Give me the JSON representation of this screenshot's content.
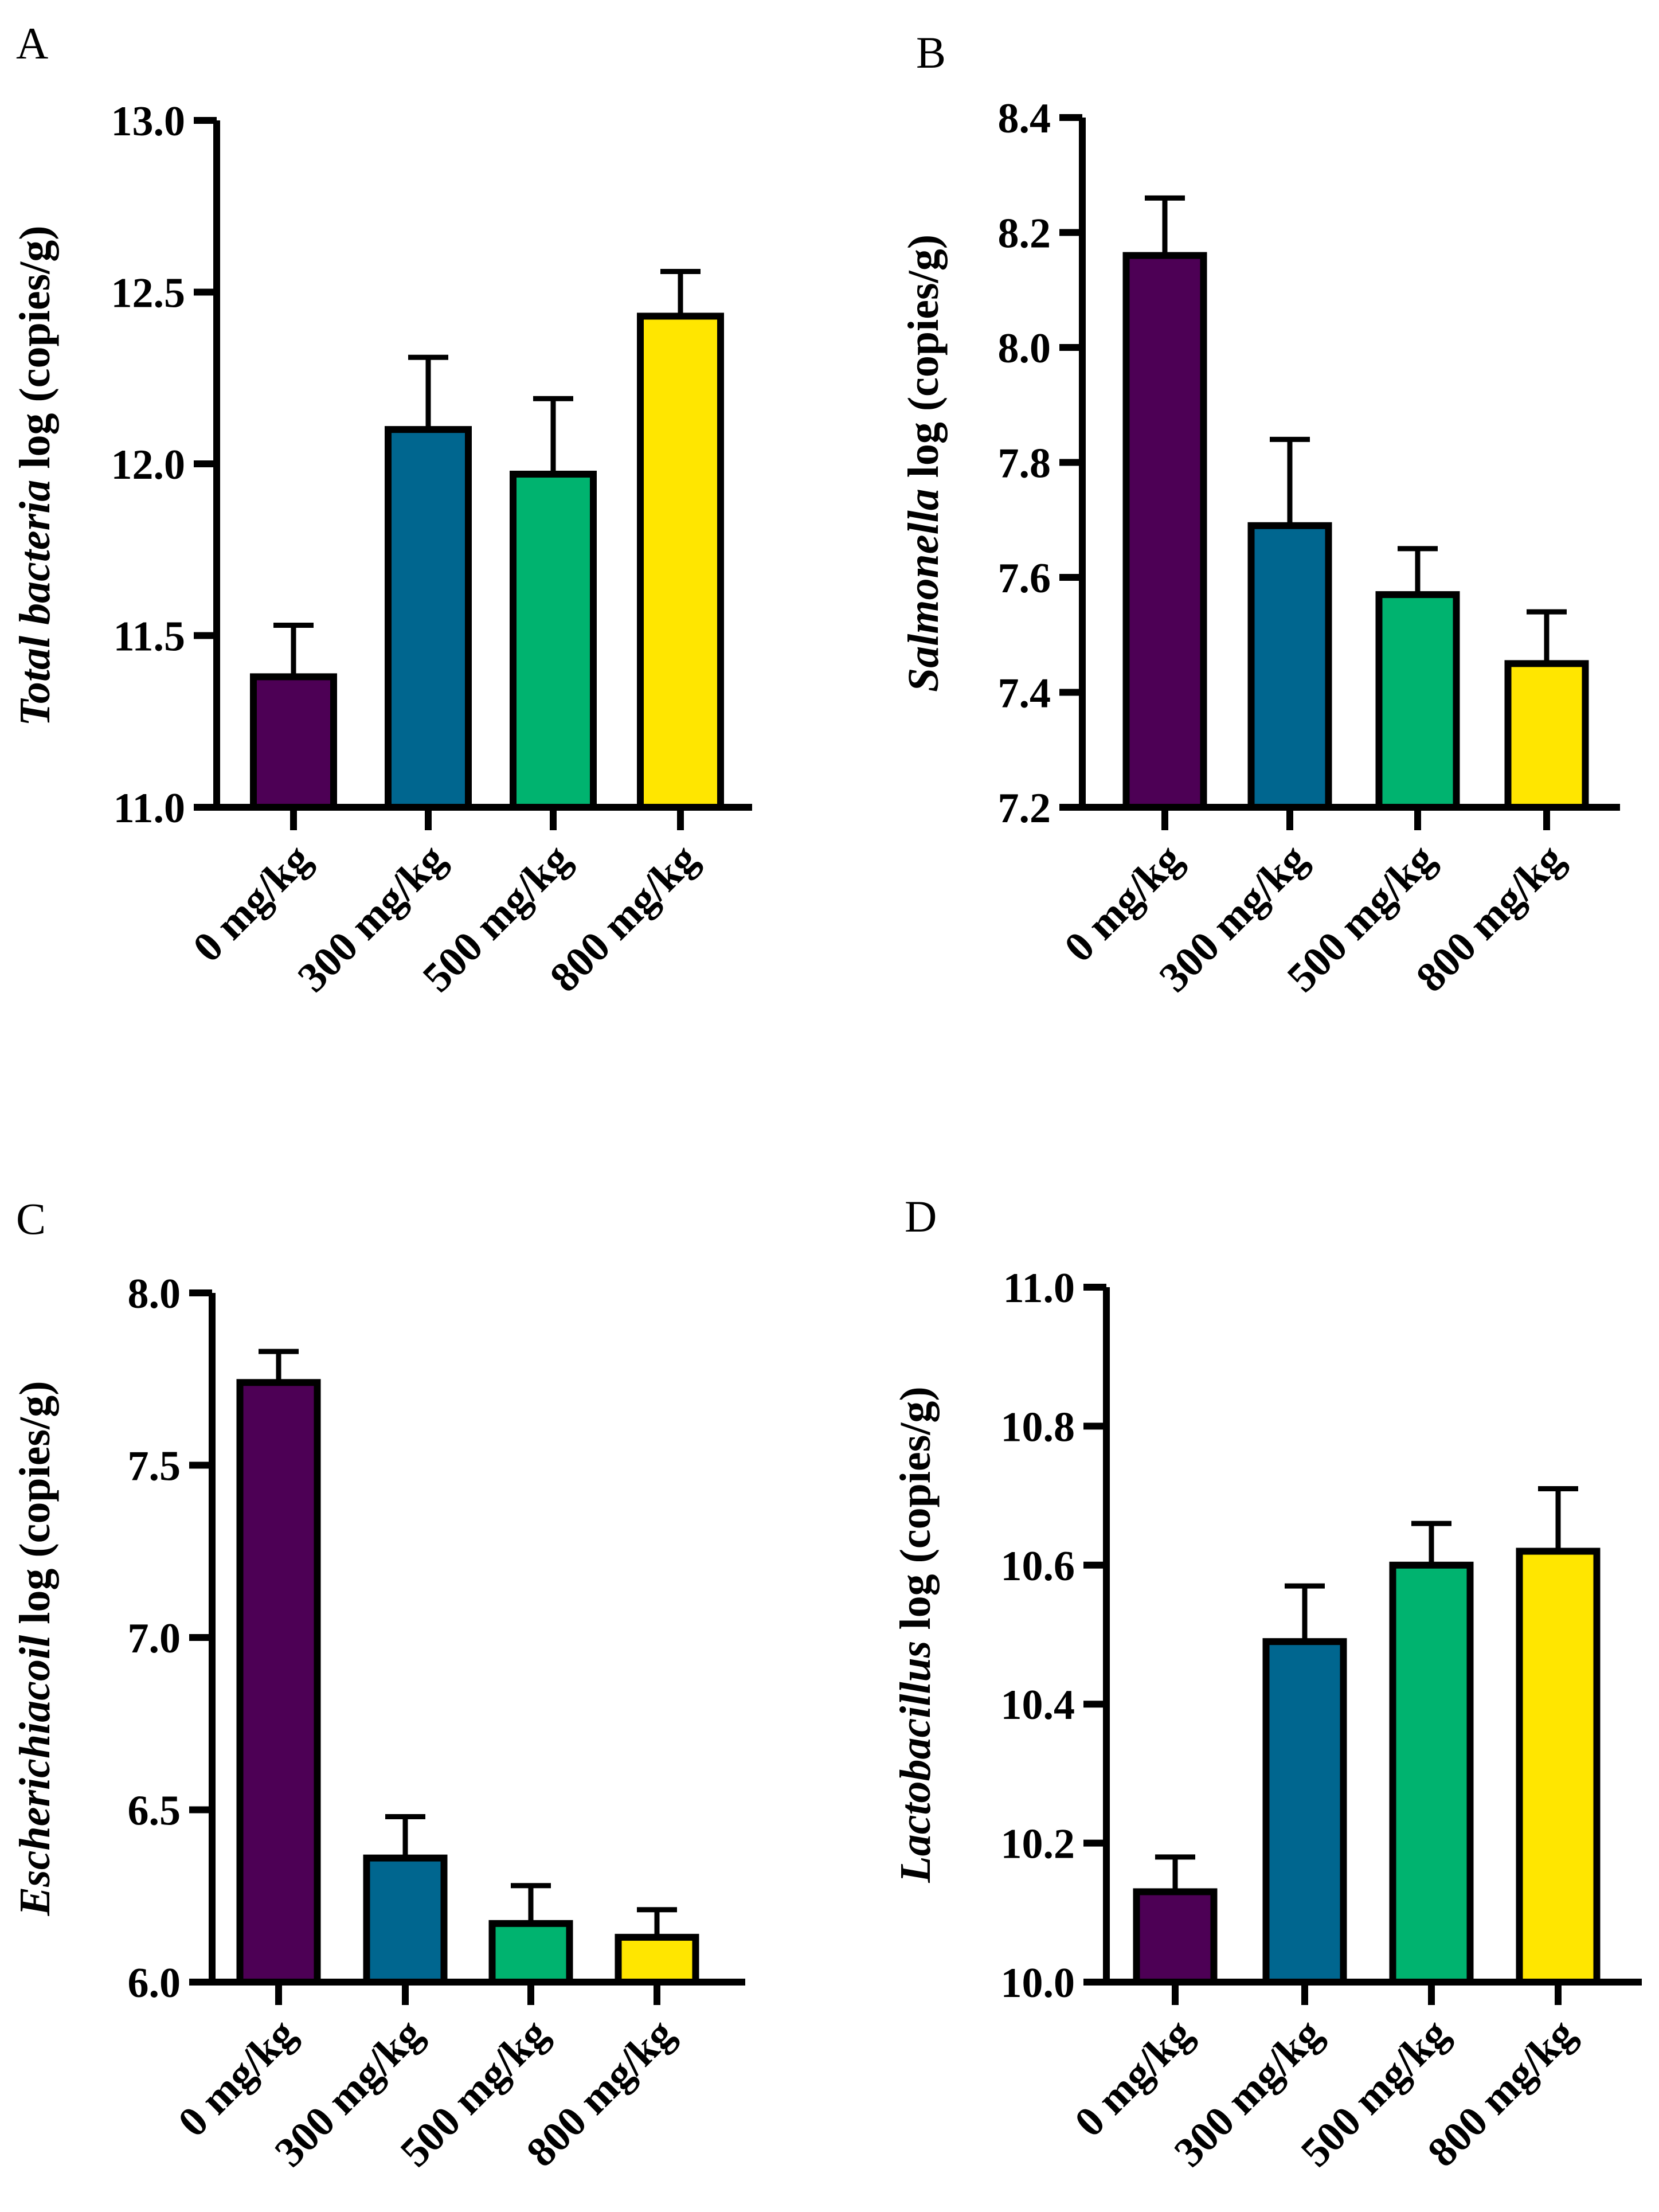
{
  "chart_data": [
    {
      "panel": "A",
      "type": "bar",
      "ylabel_italic": "Total bacteria",
      "ylabel_rest": " log (copies/g)",
      "categories": [
        "0 mg/kg",
        "300 mg/kg",
        "500 mg/kg",
        "800 mg/kg"
      ],
      "values": [
        11.38,
        12.1,
        11.97,
        12.43
      ],
      "errors": [
        0.15,
        0.21,
        0.22,
        0.13
      ],
      "ylim": [
        11.0,
        13.0
      ],
      "yticks": [
        11.0,
        11.5,
        12.0,
        12.5,
        13.0
      ],
      "ytick_labels": [
        "11.0",
        "11.5",
        "12.0",
        "12.5",
        "13.0"
      ]
    },
    {
      "panel": "B",
      "type": "bar",
      "ylabel_italic": "Salmonella",
      "ylabel_rest": " log (copies/g)",
      "categories": [
        "0 mg/kg",
        "300 mg/kg",
        "500 mg/kg",
        "800 mg/kg"
      ],
      "values": [
        8.16,
        7.69,
        7.57,
        7.45
      ],
      "errors": [
        0.1,
        0.15,
        0.08,
        0.09
      ],
      "ylim": [
        7.2,
        8.4
      ],
      "yticks": [
        7.2,
        7.4,
        7.6,
        7.8,
        8.0,
        8.2,
        8.4
      ],
      "ytick_labels": [
        "7.2",
        "7.4",
        "7.6",
        "7.8",
        "8.0",
        "8.2",
        "8.4"
      ]
    },
    {
      "panel": "C",
      "type": "bar",
      "ylabel_italic": "Escherichiacoil",
      "ylabel_rest": " log (copies/g)",
      "categories": [
        "0 mg/kg",
        "300 mg/kg",
        "500 mg/kg",
        "800 mg/kg"
      ],
      "values": [
        7.74,
        6.36,
        6.17,
        6.13
      ],
      "errors": [
        0.09,
        0.12,
        0.11,
        0.08
      ],
      "ylim": [
        6.0,
        8.0
      ],
      "yticks": [
        6.0,
        6.5,
        7.0,
        7.5,
        8.0
      ],
      "ytick_labels": [
        "6.0",
        "6.5",
        "7.0",
        "7.5",
        "8.0"
      ]
    },
    {
      "panel": "D",
      "type": "bar",
      "ylabel_italic": "Lactobacillus",
      "ylabel_rest": " log (copies/g)",
      "categories": [
        "0 mg/kg",
        "300 mg/kg",
        "500 mg/kg",
        "800 mg/kg"
      ],
      "values": [
        10.13,
        10.49,
        10.6,
        10.62
      ],
      "errors": [
        0.05,
        0.08,
        0.06,
        0.09
      ],
      "ylim": [
        10.0,
        11.0
      ],
      "yticks": [
        10.0,
        10.2,
        10.4,
        10.6,
        10.8,
        11.0
      ],
      "ytick_labels": [
        "10.0",
        "10.2",
        "10.4",
        "10.6",
        "10.8",
        "11.0"
      ]
    }
  ],
  "colors": [
    "#4d0055",
    "#00668f",
    "#00b36f",
    "#ffe600"
  ]
}
